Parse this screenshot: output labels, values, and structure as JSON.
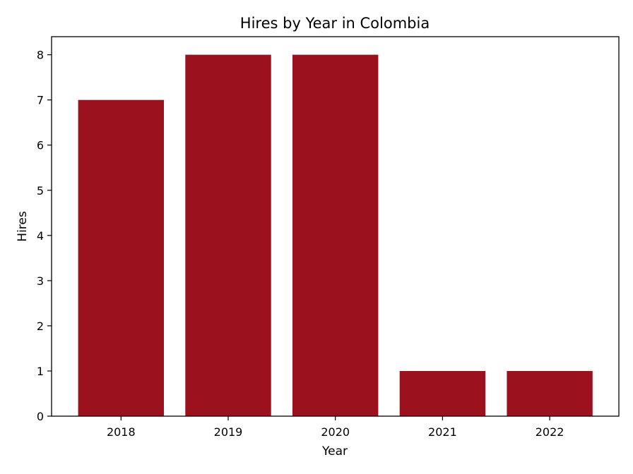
{
  "chart_data": {
    "type": "bar",
    "title": "Hires by Year in Colombia",
    "xlabel": "Year",
    "ylabel": "Hires",
    "categories": [
      "2018",
      "2019",
      "2020",
      "2021",
      "2022"
    ],
    "values": [
      7,
      8,
      8,
      1,
      1
    ],
    "ylim": [
      0,
      8.4
    ],
    "yticks": [
      "0",
      "1",
      "2",
      "3",
      "4",
      "5",
      "6",
      "7",
      "8"
    ],
    "bar_color": "#9b111e",
    "grid": false,
    "legend": "none"
  }
}
